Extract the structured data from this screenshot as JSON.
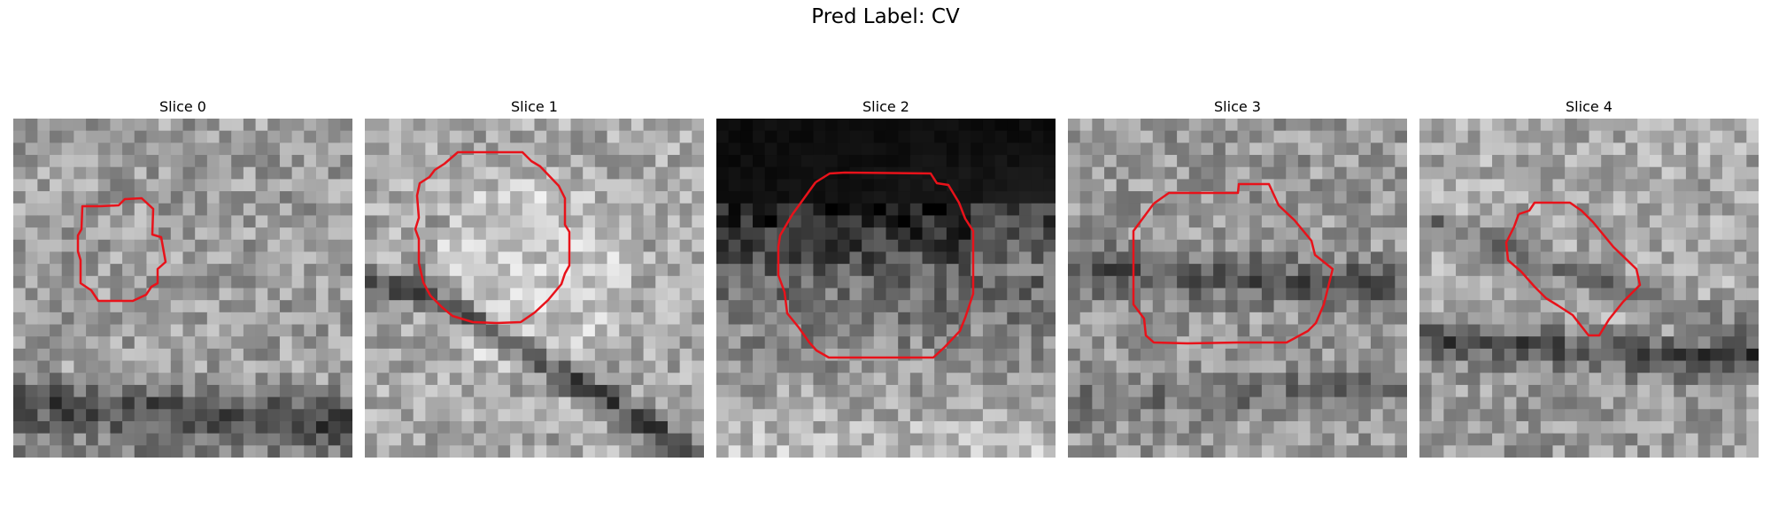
{
  "figure": {
    "title": "Pred Label: CV"
  },
  "panels": [
    {
      "title": "Slice 0"
    },
    {
      "title": "Slice 1"
    },
    {
      "title": "Slice 2"
    },
    {
      "title": "Slice 3"
    },
    {
      "title": "Slice 4"
    }
  ],
  "colors": {
    "contour": "#e8121a"
  }
}
